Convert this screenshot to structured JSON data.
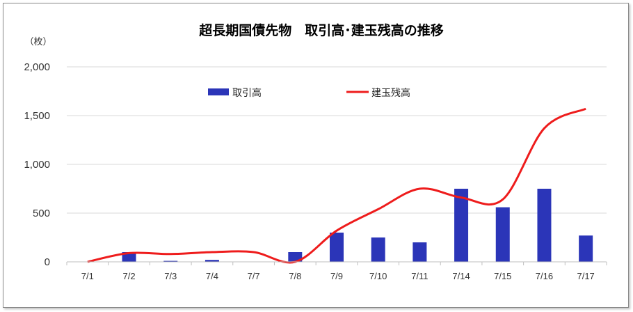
{
  "chart_data": {
    "type": "bar+line",
    "title": "超長期国債先物　取引高･建玉残高の推移",
    "ylabel": "（枚）",
    "categories": [
      "7/1",
      "7/2",
      "7/3",
      "7/4",
      "7/7",
      "7/8",
      "7/9",
      "7/10",
      "7/11",
      "7/14",
      "7/15",
      "7/16",
      "7/17"
    ],
    "y_ticks": [
      "2,000",
      "1,500",
      "1,000",
      "500",
      "0"
    ],
    "y_tick_values": [
      2000,
      1500,
      1000,
      500,
      0
    ],
    "ylim": [
      0,
      2000
    ],
    "grid": true,
    "legend_position": "top-center",
    "series": [
      {
        "name": "取引高",
        "kind": "bar",
        "color": "#2b35b8",
        "values": [
          0,
          100,
          10,
          20,
          0,
          100,
          300,
          250,
          200,
          750,
          560,
          750,
          270
        ]
      },
      {
        "name": "建玉残高",
        "kind": "line",
        "color": "#ee1c1c",
        "values": [
          0,
          90,
          80,
          100,
          100,
          0,
          320,
          540,
          750,
          660,
          640,
          1370,
          1570
        ]
      }
    ]
  }
}
